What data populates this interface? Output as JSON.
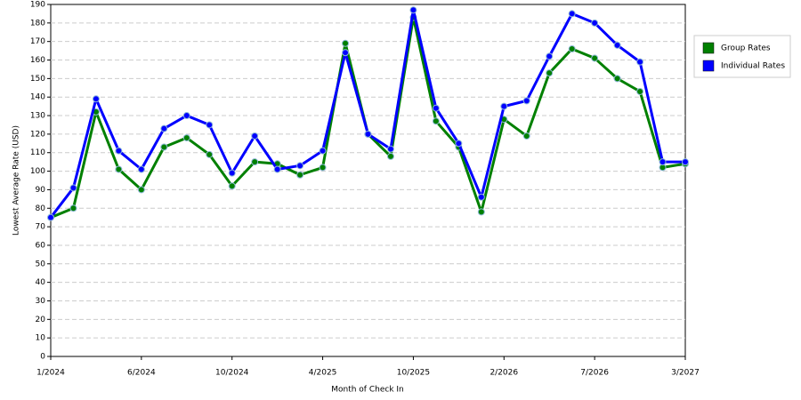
{
  "chart_data": {
    "type": "line",
    "x_label": "Month of Check In",
    "y_label": "Lowest Average Rate (USD)",
    "categories": [
      "1/2024",
      null,
      null,
      null,
      "6/2024",
      null,
      null,
      null,
      "10/2024",
      null,
      null,
      null,
      "4/2025",
      null,
      null,
      null,
      "10/2025",
      null,
      null,
      null,
      "2/2026",
      null,
      null,
      null,
      "7/2026",
      null,
      null,
      null,
      "3/2027"
    ],
    "series": [
      {
        "name": "Group Rates",
        "color": "#008000",
        "values": [
          75,
          80,
          132,
          101,
          90,
          113,
          118,
          109,
          92,
          105,
          104,
          98,
          102,
          169,
          120,
          108,
          183,
          127,
          113,
          78,
          128,
          119,
          153,
          166,
          161,
          150,
          143,
          102,
          104
        ]
      },
      {
        "name": "Individual Rates",
        "color": "#0000ff",
        "values": [
          75,
          91,
          139,
          111,
          101,
          123,
          130,
          125,
          99,
          119,
          101,
          103,
          111,
          164,
          120,
          112,
          187,
          134,
          115,
          86,
          135,
          138,
          162,
          185,
          180,
          168,
          159,
          105,
          105
        ]
      }
    ],
    "ylim": [
      0,
      190
    ],
    "yticks": [
      0,
      10,
      20,
      30,
      40,
      50,
      60,
      70,
      80,
      90,
      100,
      110,
      120,
      130,
      140,
      150,
      160,
      170,
      180,
      190
    ],
    "grid": true,
    "legend": "right"
  }
}
